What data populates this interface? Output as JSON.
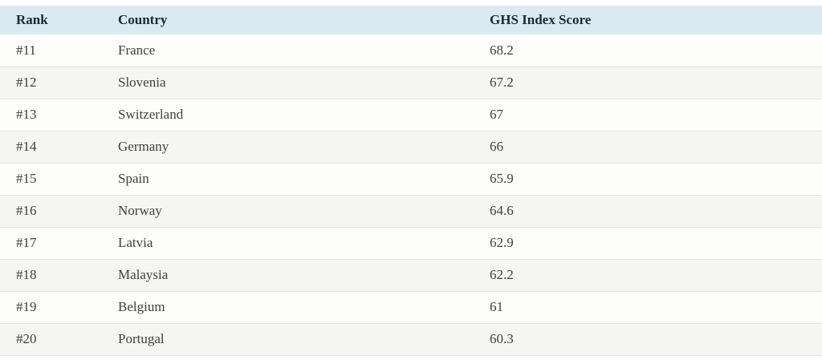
{
  "chart_data": {
    "type": "table",
    "columns": [
      {
        "key": "rank",
        "label": "Rank"
      },
      {
        "key": "country",
        "label": "Country"
      },
      {
        "key": "score",
        "label": "GHS Index Score"
      }
    ],
    "rows": [
      {
        "rank": "#11",
        "country": "France",
        "score": "68.2"
      },
      {
        "rank": "#12",
        "country": "Slovenia",
        "score": "67.2"
      },
      {
        "rank": "#13",
        "country": "Switzerland",
        "score": "67"
      },
      {
        "rank": "#14",
        "country": "Germany",
        "score": "66"
      },
      {
        "rank": "#15",
        "country": "Spain",
        "score": "65.9"
      },
      {
        "rank": "#16",
        "country": "Norway",
        "score": "64.6"
      },
      {
        "rank": "#17",
        "country": "Latvia",
        "score": "62.9"
      },
      {
        "rank": "#18",
        "country": "Malaysia",
        "score": "62.2"
      },
      {
        "rank": "#19",
        "country": "Belgium",
        "score": "61"
      },
      {
        "rank": "#20",
        "country": "Portugal",
        "score": "60.3"
      }
    ],
    "layout": {
      "legend": "none",
      "grid": "row-dividers",
      "striped": true
    }
  },
  "colors": {
    "header_bg": "#daeaf3",
    "row_bg": "#fdfdfc",
    "stripe_bg": "#f5f6f3",
    "border": "#e3e3e1",
    "header_text": "#1b2a32",
    "body_text": "#404040"
  }
}
